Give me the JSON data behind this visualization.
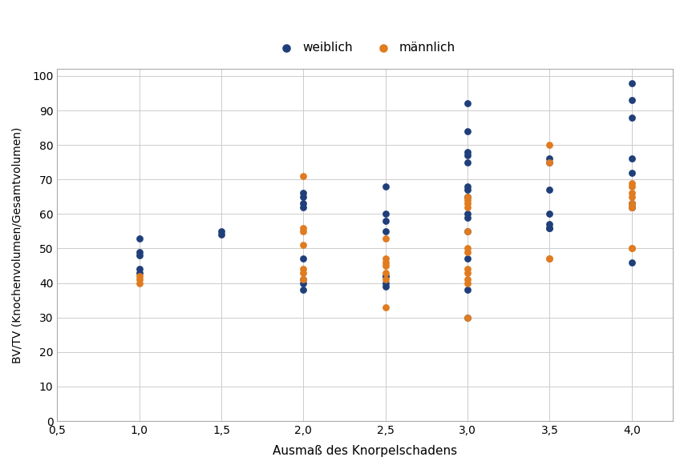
{
  "xlabel": "Ausmaß des Knorpelschadens",
  "ylabel": "BV/TV (Knochenvolumen/Gesamtvolumen)",
  "xlim": [
    0.5,
    4.25
  ],
  "ylim": [
    0,
    102
  ],
  "xticks": [
    0.5,
    1.0,
    1.5,
    2.0,
    2.5,
    3.0,
    3.5,
    4.0
  ],
  "xtick_labels": [
    "0,5",
    "1,0",
    "1,5",
    "2,0",
    "2,5",
    "3,0",
    "3,5",
    "4,0"
  ],
  "yticks": [
    0,
    10,
    20,
    30,
    40,
    50,
    60,
    70,
    80,
    90,
    100
  ],
  "legend_labels": [
    "weiblich",
    "männlich"
  ],
  "color_female": "#1f3f7a",
  "color_male": "#e07b20",
  "background_color": "#ffffff",
  "grid_color": "#cccccc",
  "weiblich_x": [
    1.0,
    1.0,
    1.0,
    1.0,
    1.0,
    1.5,
    1.5,
    2.0,
    2.0,
    2.0,
    2.0,
    2.0,
    2.0,
    2.0,
    2.0,
    2.5,
    2.5,
    2.5,
    2.5,
    2.5,
    2.5,
    2.5,
    2.5,
    3.0,
    3.0,
    3.0,
    3.0,
    3.0,
    3.0,
    3.0,
    3.0,
    3.0,
    3.0,
    3.0,
    3.0,
    3.0,
    3.0,
    3.5,
    3.5,
    3.5,
    3.5,
    3.5,
    3.5,
    3.5,
    4.0,
    4.0,
    4.0,
    4.0,
    4.0,
    4.0,
    4.0,
    4.0,
    4.0
  ],
  "weiblich_y": [
    53,
    49,
    48,
    44,
    43,
    55,
    54,
    66,
    65,
    63,
    62,
    47,
    41,
    40,
    38,
    68,
    60,
    58,
    55,
    42,
    42,
    40,
    39,
    92,
    84,
    78,
    77,
    75,
    68,
    67,
    65,
    60,
    59,
    55,
    47,
    38,
    30,
    76,
    75,
    67,
    60,
    57,
    56,
    56,
    98,
    93,
    88,
    76,
    72,
    63,
    62,
    62,
    46
  ],
  "maennlich_x": [
    1.0,
    1.0,
    1.0,
    2.0,
    2.0,
    2.0,
    2.0,
    2.0,
    2.0,
    2.0,
    2.5,
    2.5,
    2.5,
    2.5,
    2.5,
    2.5,
    2.5,
    3.0,
    3.0,
    3.0,
    3.0,
    3.0,
    3.0,
    3.0,
    3.0,
    3.0,
    3.0,
    3.0,
    3.0,
    3.5,
    3.5,
    3.5,
    3.5,
    4.0,
    4.0,
    4.0,
    4.0,
    4.0,
    4.0,
    4.0,
    4.0,
    4.0
  ],
  "maennlich_y": [
    42,
    41,
    40,
    71,
    56,
    55,
    51,
    44,
    43,
    41,
    53,
    47,
    46,
    45,
    43,
    41,
    33,
    65,
    64,
    63,
    62,
    55,
    50,
    49,
    44,
    43,
    41,
    40,
    30,
    80,
    75,
    47,
    47,
    69,
    68,
    66,
    65,
    63,
    62,
    62,
    50,
    50
  ],
  "marker_size": 40,
  "border_color": "#aaaaaa"
}
